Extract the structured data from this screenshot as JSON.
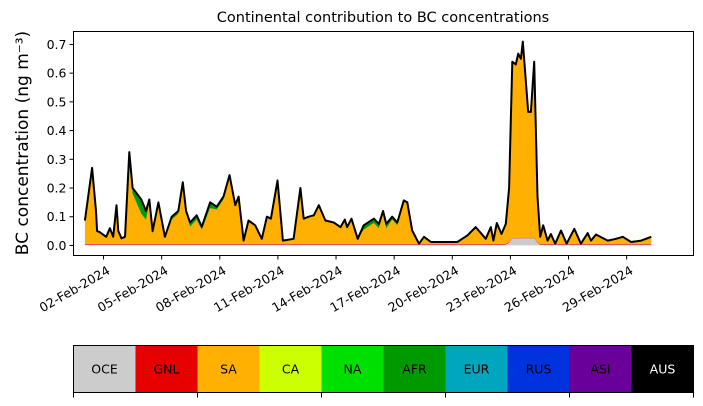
{
  "chart_data": {
    "type": "area",
    "stacked": true,
    "title": "Continental contribution to BC concentrations",
    "xlabel": "",
    "ylabel": "BC concentration (ng m⁻³)",
    "x_unit": "day of February 2024",
    "xlim": [
      0.45,
      32.45
    ],
    "ylim": [
      -0.035,
      0.745
    ],
    "yticks": [
      0.0,
      0.1,
      0.2,
      0.3,
      0.4,
      0.5,
      0.6,
      0.7
    ],
    "ytick_labels": [
      "0.0",
      "0.1",
      "0.2",
      "0.3",
      "0.4",
      "0.5",
      "0.6",
      "0.7"
    ],
    "xticks": [
      2,
      5,
      8,
      11,
      14,
      17,
      20,
      23,
      26,
      29
    ],
    "xtick_labels": [
      "02-Feb-2024",
      "05-Feb-2024",
      "08-Feb-2024",
      "11-Feb-2024",
      "14-Feb-2024",
      "17-Feb-2024",
      "20-Feb-2024",
      "23-Feb-2024",
      "26-Feb-2024",
      "29-Feb-2024"
    ],
    "grid": false,
    "x": [
      1.04,
      1.41,
      1.61,
      1.67,
      1.81,
      2.14,
      2.33,
      2.5,
      2.67,
      2.76,
      2.93,
      3.11,
      3.33,
      3.5,
      3.95,
      4.19,
      4.36,
      4.53,
      4.83,
      5.17,
      5.52,
      5.86,
      6.09,
      6.26,
      6.47,
      6.81,
      7.07,
      7.5,
      7.84,
      8.19,
      8.5,
      8.8,
      8.97,
      9.23,
      9.48,
      9.83,
      10.17,
      10.43,
      10.64,
      10.98,
      11.26,
      11.81,
      12.16,
      12.33,
      12.59,
      12.85,
      13.11,
      13.45,
      13.88,
      14.23,
      14.45,
      14.57,
      14.8,
      15.12,
      15.43,
      15.95,
      16.21,
      16.43,
      16.59,
      16.9,
      17.16,
      17.5,
      17.68,
      17.93,
      18.28,
      18.54,
      18.9,
      20.26,
      20.78,
      21.21,
      21.73,
      21.99,
      22.12,
      22.3,
      22.54,
      22.76,
      22.93,
      23.1,
      23.28,
      23.4,
      23.54,
      23.64,
      23.92,
      24.06,
      24.23,
      24.4,
      24.54,
      24.69,
      24.92,
      25.09,
      25.31,
      25.61,
      25.9,
      26.3,
      26.64,
      26.99,
      27.16,
      27.42,
      28.02,
      28.45,
      28.8,
      29.23,
      29.75,
      30.27
    ],
    "total": [
      0.087,
      0.27,
      0.12,
      0.05,
      0.046,
      0.03,
      0.06,
      0.03,
      0.14,
      0.05,
      0.025,
      0.03,
      0.325,
      0.2,
      0.16,
      0.12,
      0.16,
      0.05,
      0.15,
      0.03,
      0.1,
      0.12,
      0.22,
      0.12,
      0.08,
      0.105,
      0.065,
      0.15,
      0.135,
      0.17,
      0.245,
      0.14,
      0.17,
      0.017,
      0.087,
      0.07,
      0.023,
      0.1,
      0.093,
      0.226,
      0.017,
      0.023,
      0.2,
      0.093,
      0.1,
      0.105,
      0.14,
      0.087,
      0.08,
      0.064,
      0.09,
      0.064,
      0.093,
      0.023,
      0.07,
      0.093,
      0.075,
      0.12,
      0.075,
      0.1,
      0.08,
      0.157,
      0.15,
      0.052,
      0.006,
      0.03,
      0.012,
      0.012,
      0.035,
      0.064,
      0.023,
      0.064,
      0.017,
      0.078,
      0.04,
      0.075,
      0.2,
      0.64,
      0.63,
      0.668,
      0.65,
      0.71,
      0.465,
      0.465,
      0.64,
      0.17,
      0.03,
      0.07,
      0.017,
      0.04,
      0.006,
      0.052,
      0.006,
      0.058,
      0.006,
      0.043,
      0.017,
      0.038,
      0.017,
      0.023,
      0.03,
      0.012,
      0.017,
      0.03
    ],
    "series": [
      {
        "name": "OCE",
        "color": "#cccccc",
        "values": [
          0.003,
          0.003,
          0.003,
          0.003,
          0.003,
          0.003,
          0.003,
          0.003,
          0.003,
          0.003,
          0.003,
          0.003,
          0.003,
          0.003,
          0.003,
          0.003,
          0.003,
          0.003,
          0.003,
          0.003,
          0.003,
          0.003,
          0.003,
          0.003,
          0.003,
          0.003,
          0.003,
          0.003,
          0.003,
          0.003,
          0.003,
          0.003,
          0.003,
          0.003,
          0.003,
          0.003,
          0.003,
          0.003,
          0.003,
          0.003,
          0.003,
          0.003,
          0.003,
          0.003,
          0.003,
          0.003,
          0.003,
          0.003,
          0.003,
          0.003,
          0.003,
          0.003,
          0.003,
          0.003,
          0.003,
          0.003,
          0.003,
          0.003,
          0.003,
          0.003,
          0.003,
          0.003,
          0.003,
          0.003,
          0.003,
          0.003,
          0.003,
          0.003,
          0.003,
          0.003,
          0.003,
          0.003,
          0.003,
          0.003,
          0.003,
          0.003,
          0.01,
          0.025,
          0.025,
          0.025,
          0.025,
          0.025,
          0.025,
          0.025,
          0.025,
          0.01,
          0.003,
          0.003,
          0.003,
          0.003,
          0.003,
          0.003,
          0.003,
          0.003,
          0.003,
          0.003,
          0.003,
          0.003,
          0.003,
          0.003,
          0.003,
          0.003,
          0.003,
          0.003
        ]
      },
      {
        "name": "GNL",
        "color": "#e60000",
        "constant": 0.002
      },
      {
        "name": "SA",
        "color": "#ffb000",
        "remainder": true
      },
      {
        "name": "AFR",
        "color": "#009900",
        "values": [
          0.01,
          0.005,
          0,
          0,
          0,
          0,
          0,
          0,
          0,
          0,
          0,
          0,
          0.005,
          0.02,
          0.05,
          0.03,
          0.01,
          0.01,
          0.005,
          0,
          0.01,
          0.01,
          0.005,
          0.01,
          0.015,
          0.015,
          0.01,
          0.02,
          0.01,
          0.01,
          0.005,
          0,
          0,
          0,
          0,
          0,
          0,
          0,
          0,
          0,
          0,
          0,
          0,
          0,
          0,
          0,
          0,
          0,
          0,
          0.005,
          0,
          0.005,
          0,
          0,
          0.015,
          0.015,
          0.015,
          0.01,
          0.015,
          0.01,
          0.01,
          0.005,
          0,
          0,
          0,
          0,
          0,
          0,
          0,
          0,
          0,
          0,
          0,
          0,
          0,
          0,
          0,
          0,
          0,
          0,
          0,
          0,
          0,
          0,
          0,
          0,
          0,
          0,
          0,
          0,
          0,
          0,
          0,
          0,
          0,
          0,
          0,
          0,
          0,
          0,
          0,
          0,
          0,
          0
        ]
      }
    ],
    "total_line_color": "#000000",
    "legend": {
      "placement": "bottom colorbar",
      "entries": [
        {
          "label": "OCE",
          "color": "#cccccc",
          "text_color": "#000000"
        },
        {
          "label": "GNL",
          "color": "#e60000",
          "text_color": "#000000"
        },
        {
          "label": "SA",
          "color": "#ffb000",
          "text_color": "#000000"
        },
        {
          "label": "CA",
          "color": "#ccff00",
          "text_color": "#000000"
        },
        {
          "label": "NA",
          "color": "#00e000",
          "text_color": "#000000"
        },
        {
          "label": "AFR",
          "color": "#009900",
          "text_color": "#000000"
        },
        {
          "label": "EUR",
          "color": "#00a6bd",
          "text_color": "#000000"
        },
        {
          "label": "RUS",
          "color": "#0033dd",
          "text_color": "#000000"
        },
        {
          "label": "ASI",
          "color": "#6a0099",
          "text_color": "#000000"
        },
        {
          "label": "AUS",
          "color": "#000000",
          "text_color": "#ffffff"
        }
      ]
    }
  }
}
